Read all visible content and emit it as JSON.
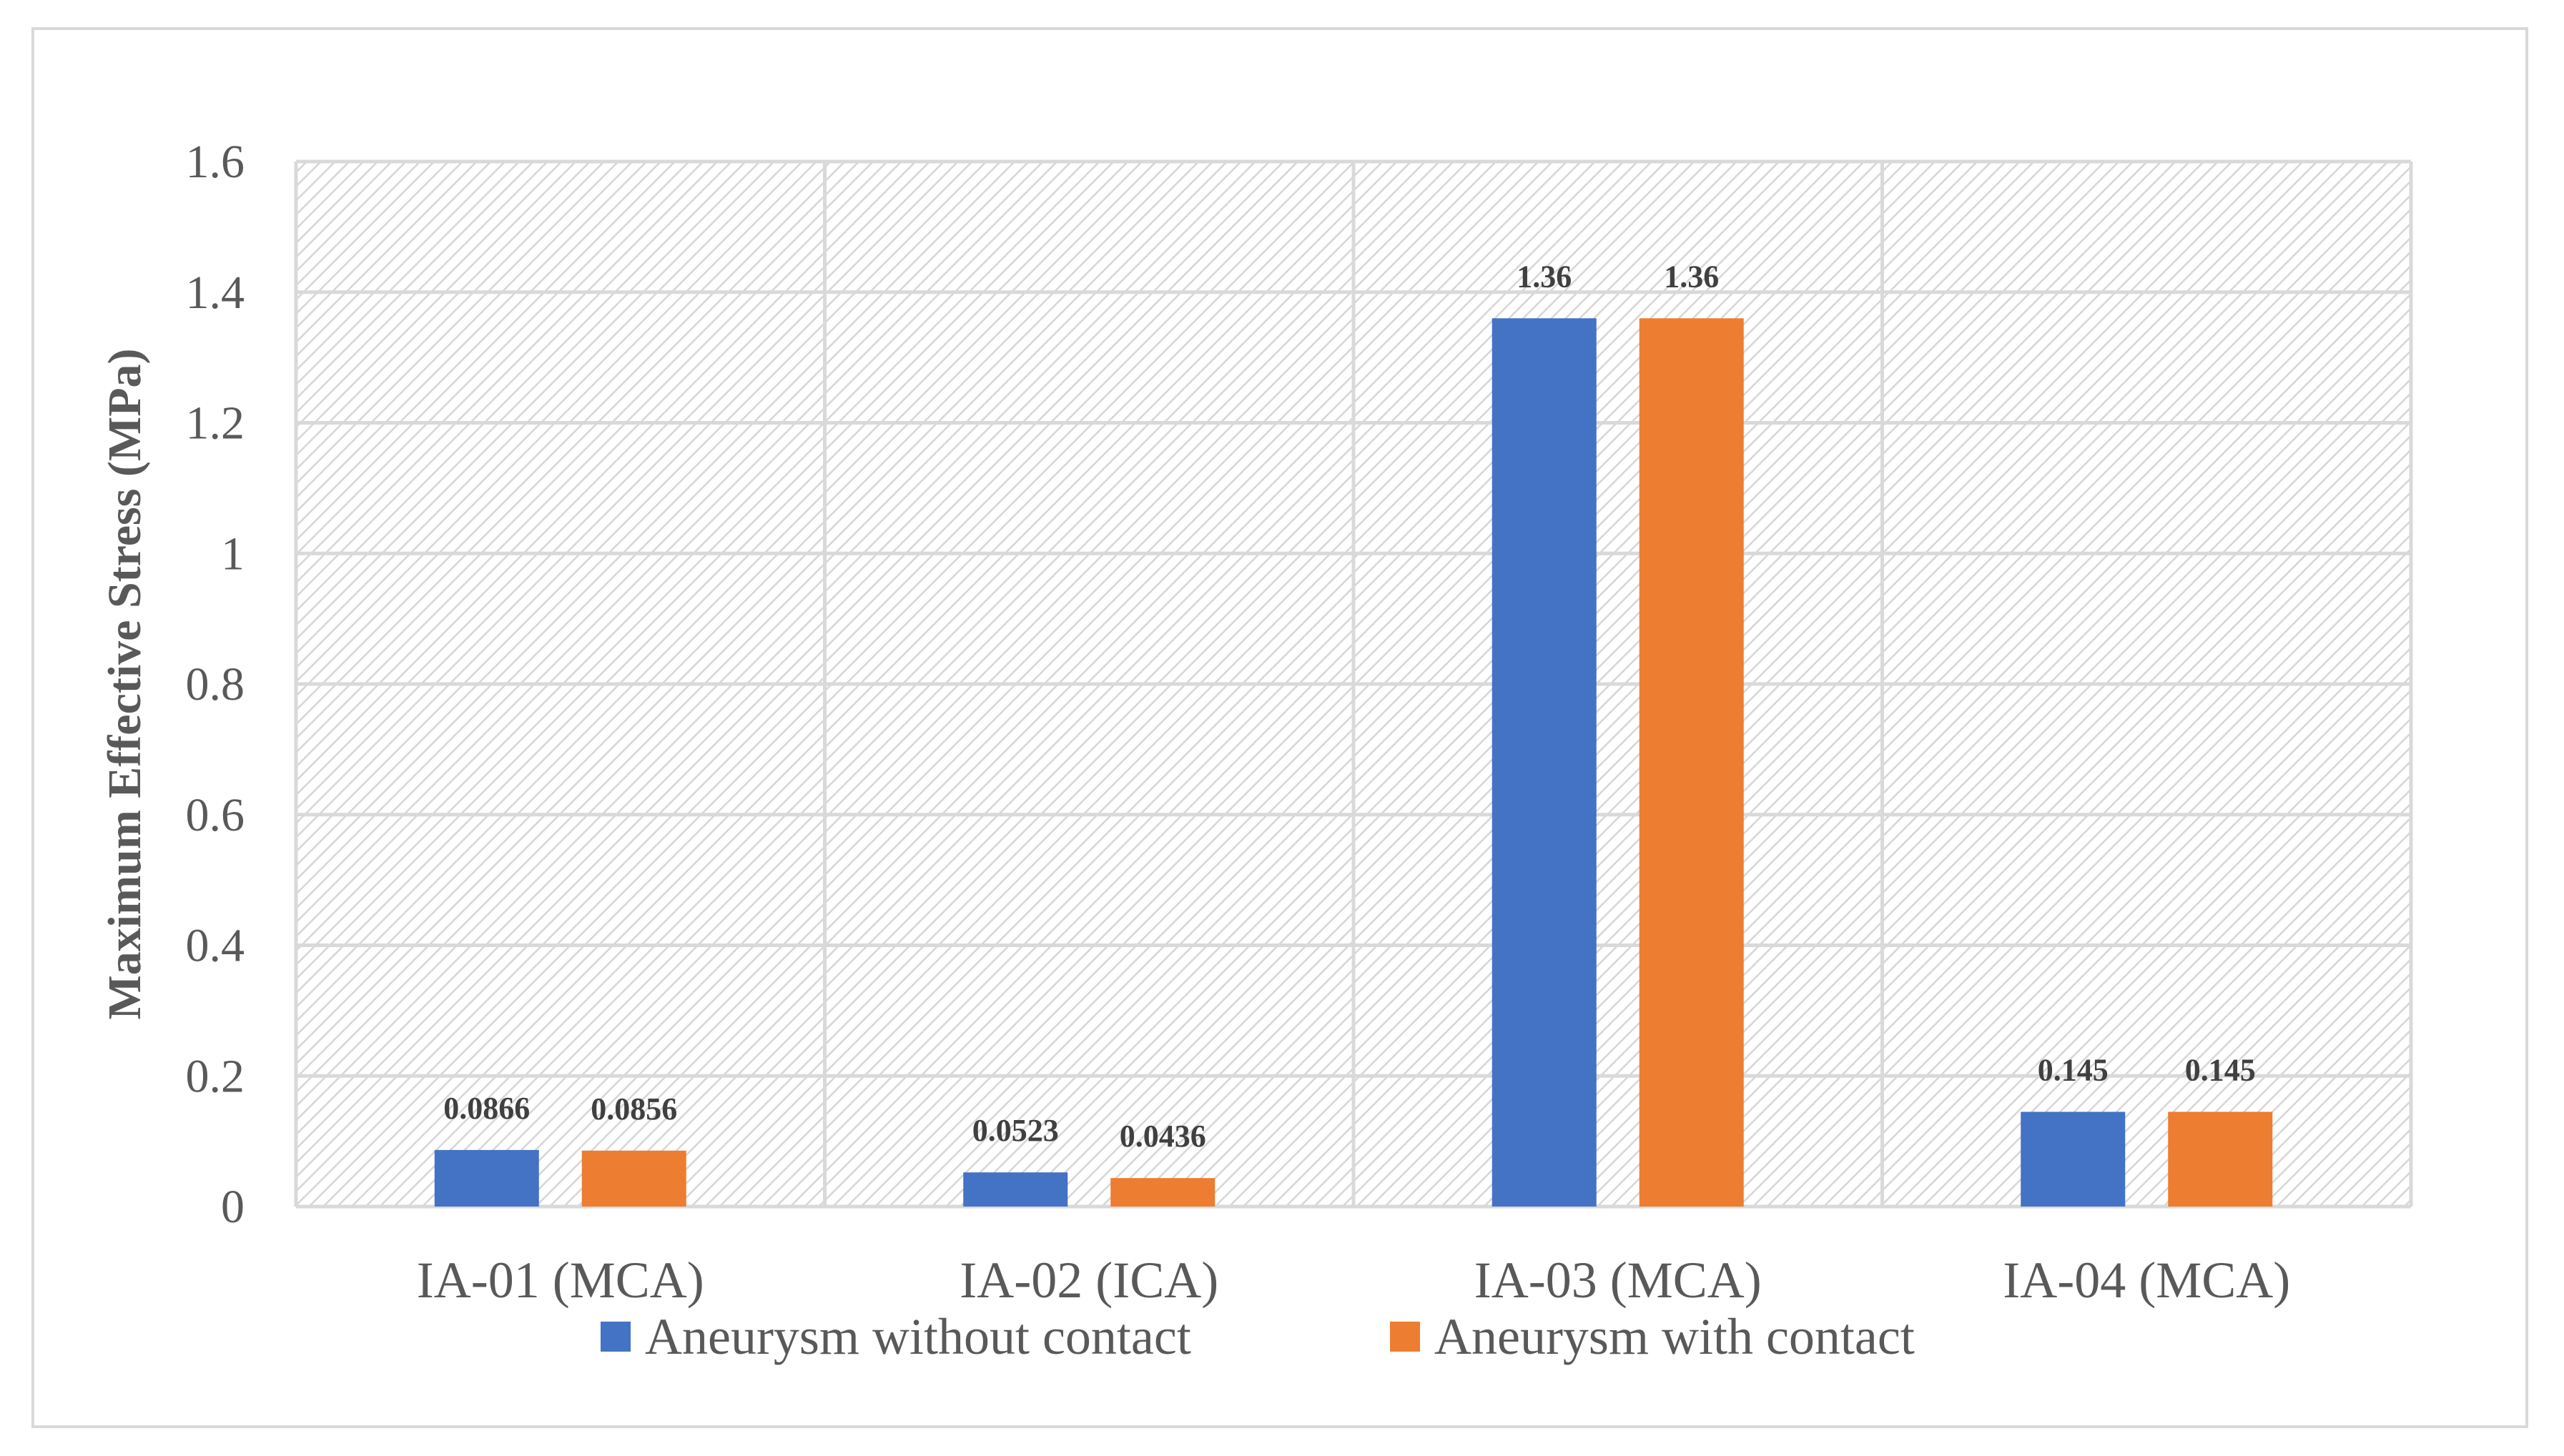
{
  "chart_data": {
    "type": "bar",
    "title": "",
    "xlabel": "",
    "ylabel": "Maximum Effective Stress (MPa)",
    "ylim": [
      0,
      1.6
    ],
    "yticks": [
      "0",
      "0.2",
      "0.4",
      "0.6",
      "0.8",
      "1",
      "1.2",
      "1.4",
      "1.6"
    ],
    "ytick_values": [
      0,
      0.2,
      0.4,
      0.6,
      0.8,
      1,
      1.2,
      1.4,
      1.6
    ],
    "categories": [
      "IA-01 (MCA)",
      "IA-02 (ICA)",
      "IA-03 (MCA)",
      "IA-04 (MCA)"
    ],
    "series": [
      {
        "name": "Aneurysm without contact",
        "color": "#4472c4",
        "values": [
          0.0866,
          0.0523,
          1.36,
          0.145
        ],
        "labels": [
          "0.0866",
          "0.0523",
          "1.36",
          "0.145"
        ]
      },
      {
        "name": "Aneurysm with contact",
        "color": "#ed7d31",
        "values": [
          0.0856,
          0.0436,
          1.36,
          0.145
        ],
        "labels": [
          "0.0856",
          "0.0436",
          "1.36",
          "0.145"
        ]
      }
    ],
    "grid": true,
    "legend_position": "bottom"
  }
}
